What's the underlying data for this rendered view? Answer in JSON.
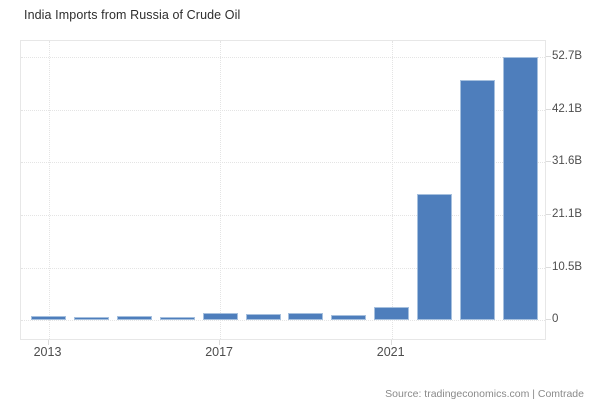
{
  "title": "India Imports from Russia of Crude Oil",
  "footer": {
    "source": "Source: tradingeconomics.com | Comtrade"
  },
  "colors": {
    "background": "#ffffff",
    "bar_fill": "#4e7ebc",
    "bar_border": "#a6c0de",
    "grid": "#e4e4e4",
    "plot_border": "#e7e7e7",
    "title_text": "#2d2d2d",
    "axis_text": "#4d4d4d",
    "source_text": "#8a8a8a"
  },
  "chart_data": {
    "type": "bar",
    "title": "India Imports from Russia of Crude Oil",
    "categories": [
      "2013",
      "2014",
      "2015",
      "2016",
      "2017",
      "2018",
      "2019",
      "2020",
      "2021",
      "2022",
      "2023",
      "2024"
    ],
    "values": [
      0.9,
      0.7,
      0.9,
      0.7,
      1.4,
      1.2,
      1.5,
      1.0,
      2.6,
      25.2,
      48.1,
      52.7
    ],
    "value_suffix": "B",
    "xlabel": "",
    "ylabel": "",
    "ylim": [
      0,
      52.7
    ],
    "yticks": [
      {
        "value": 0,
        "label": "0"
      },
      {
        "value": 10.5,
        "label": "10.5B"
      },
      {
        "value": 21.1,
        "label": "21.1B"
      },
      {
        "value": 31.6,
        "label": "31.6B"
      },
      {
        "value": 42.1,
        "label": "42.1B"
      },
      {
        "value": 52.7,
        "label": "52.7B"
      }
    ],
    "xticks": [
      {
        "index": 0,
        "label": "2013"
      },
      {
        "index": 4,
        "label": "2017"
      },
      {
        "index": 8,
        "label": "2021"
      }
    ],
    "grid": "dotted",
    "legend": "none",
    "y_axis_side": "right"
  }
}
